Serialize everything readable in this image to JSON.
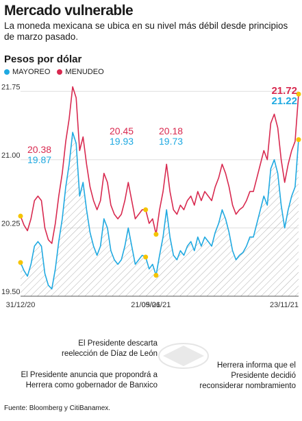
{
  "header": {
    "title": "Mercado vulnerable",
    "subtitle": "La moneda mexicana se ubica en su nivel más débil desde principios de marzo pasado.",
    "units": "Pesos por dólar"
  },
  "colors": {
    "mayoreo": "#1fa9e1",
    "menudeo": "#d8294f",
    "highlight": "#f5c400"
  },
  "notes": {
    "n1": "El Presidente descarta reelección de Díaz de León",
    "n2": "El Presidente anuncia que propondrá a Herrera como gobernador de Banxico",
    "n3": "Herrera informa que el Presidente decidió reconsiderar nombramiento"
  },
  "source": "Fuente: Bloomberg y CitiBanamex.",
  "chart_data": {
    "type": "line",
    "ylim": [
      19.5,
      21.85
    ],
    "yticks": [
      "19.50",
      "20.25",
      "21.00",
      "21.75"
    ],
    "xtick_labels": [
      "31/12/20",
      "21/05/21",
      "09/06/21",
      "23/11/21"
    ],
    "legend": [
      "MAYOREO",
      "MENUDEO"
    ],
    "annotations": [
      {
        "menudeo": "20.38",
        "mayoreo": "19.87"
      },
      {
        "menudeo": "20.45",
        "mayoreo": "19.93"
      },
      {
        "menudeo": "20.18",
        "mayoreo": "19.73"
      },
      {
        "menudeo": "21.72",
        "mayoreo": "21.22"
      }
    ],
    "series": [
      {
        "name": "MAYOREO",
        "values": [
          19.87,
          19.78,
          19.72,
          19.85,
          20.05,
          20.1,
          20.05,
          19.75,
          19.62,
          19.58,
          19.8,
          20.1,
          20.35,
          20.7,
          20.95,
          21.3,
          21.18,
          20.6,
          20.75,
          20.45,
          20.2,
          20.05,
          19.95,
          20.05,
          20.35,
          20.25,
          20.0,
          19.9,
          19.85,
          19.9,
          20.05,
          20.25,
          20.05,
          19.85,
          19.9,
          19.95,
          19.93,
          19.8,
          19.85,
          19.73,
          19.95,
          20.15,
          20.45,
          20.15,
          19.95,
          19.9,
          20.0,
          19.95,
          20.05,
          20.1,
          20.0,
          20.15,
          20.05,
          20.15,
          20.1,
          20.05,
          20.2,
          20.3,
          20.45,
          20.35,
          20.2,
          20.0,
          19.9,
          19.95,
          19.98,
          20.05,
          20.15,
          20.15,
          20.3,
          20.45,
          20.6,
          20.5,
          20.9,
          21.0,
          20.85,
          20.5,
          20.25,
          20.45,
          20.6,
          20.7,
          21.22
        ]
      },
      {
        "name": "MENUDEO",
        "values": [
          20.38,
          20.28,
          20.22,
          20.35,
          20.55,
          20.6,
          20.55,
          20.25,
          20.12,
          20.08,
          20.3,
          20.6,
          20.85,
          21.2,
          21.45,
          21.8,
          21.68,
          21.1,
          21.25,
          20.95,
          20.7,
          20.55,
          20.45,
          20.55,
          20.85,
          20.75,
          20.5,
          20.4,
          20.35,
          20.4,
          20.55,
          20.75,
          20.55,
          20.35,
          20.4,
          20.45,
          20.45,
          20.3,
          20.35,
          20.18,
          20.45,
          20.65,
          20.95,
          20.65,
          20.45,
          20.4,
          20.5,
          20.45,
          20.55,
          20.6,
          20.5,
          20.65,
          20.55,
          20.65,
          20.6,
          20.55,
          20.7,
          20.8,
          20.95,
          20.85,
          20.7,
          20.5,
          20.4,
          20.45,
          20.48,
          20.55,
          20.65,
          20.65,
          20.8,
          20.95,
          21.1,
          21.0,
          21.4,
          21.5,
          21.35,
          21.0,
          20.75,
          20.95,
          21.1,
          21.2,
          21.72
        ]
      }
    ],
    "marker_indices": [
      0,
      36,
      39,
      80
    ]
  }
}
